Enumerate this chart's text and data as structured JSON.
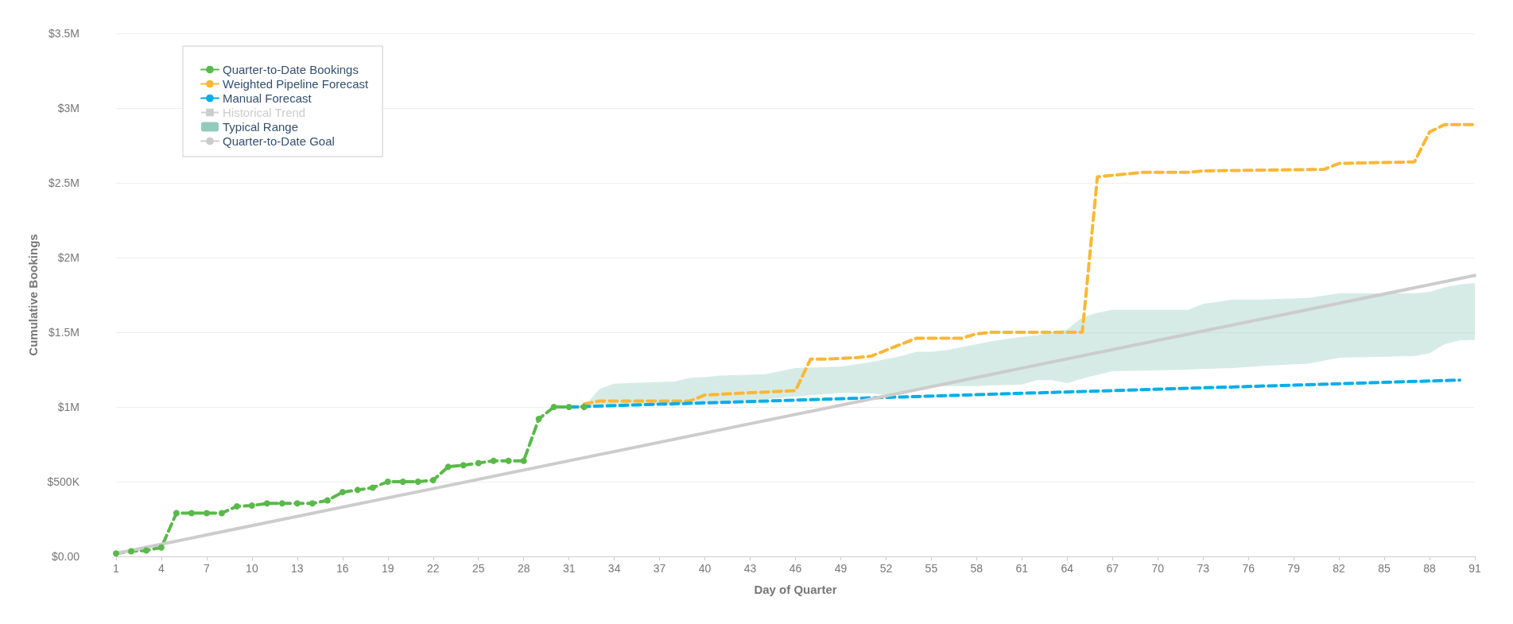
{
  "chart_data": {
    "type": "line",
    "xlabel": "Day of Quarter",
    "ylabel": "Cumulative Bookings",
    "xlim": [
      1,
      91
    ],
    "xticks": [
      1,
      4,
      7,
      10,
      13,
      16,
      19,
      22,
      25,
      28,
      31,
      34,
      37,
      40,
      43,
      46,
      49,
      52,
      55,
      58,
      61,
      64,
      67,
      70,
      73,
      76,
      79,
      82,
      85,
      88,
      91
    ],
    "ylim": [
      0,
      3500000
    ],
    "yticks": [
      {
        "value": 0,
        "label": "$0.00"
      },
      {
        "value": 500000,
        "label": "$500K"
      },
      {
        "value": 1000000,
        "label": "$1M"
      },
      {
        "value": 1500000,
        "label": "$1.5M"
      },
      {
        "value": 2000000,
        "label": "$2M"
      },
      {
        "value": 2500000,
        "label": "$2.5M"
      },
      {
        "value": 3000000,
        "label": "$3M"
      },
      {
        "value": 3500000,
        "label": "$3.5M"
      }
    ],
    "grid": "y",
    "legend": "top left",
    "series": [
      {
        "name": "Quarter-to-Date Bookings",
        "color": "#59b94a",
        "marker": "circle",
        "line_style": "dashed",
        "x": [
          1,
          2,
          3,
          4,
          5,
          6,
          7,
          8,
          9,
          10,
          11,
          12,
          13,
          14,
          15,
          16,
          17,
          18,
          19,
          20,
          21,
          22,
          23,
          24,
          25,
          26,
          27,
          28,
          29,
          30,
          31,
          32
        ],
        "values": [
          20000,
          35000,
          40000,
          60000,
          290000,
          290000,
          290000,
          290000,
          335000,
          340000,
          355000,
          355000,
          355000,
          355000,
          375000,
          430000,
          445000,
          460000,
          500000,
          500000,
          500000,
          510000,
          600000,
          610000,
          625000,
          640000,
          640000,
          640000,
          920000,
          1000000,
          1000000,
          1000000
        ]
      },
      {
        "name": "Weighted Pipeline Forecast",
        "color": "#fbb735",
        "marker": "none",
        "line_style": "dashed",
        "x": [
          32,
          33,
          39,
          40,
          44,
          46,
          47,
          48,
          50,
          51,
          52,
          53,
          54,
          57,
          58,
          59,
          65,
          66,
          67,
          69,
          72,
          73,
          81,
          82,
          87,
          88,
          89,
          91
        ],
        "values": [
          1020000,
          1040000,
          1040000,
          1080000,
          1100000,
          1110000,
          1320000,
          1320000,
          1330000,
          1340000,
          1380000,
          1420000,
          1460000,
          1460000,
          1490000,
          1500000,
          1500000,
          2540000,
          2550000,
          2570000,
          2570000,
          2580000,
          2590000,
          2630000,
          2640000,
          2840000,
          2890000,
          2890000
        ]
      },
      {
        "name": "Manual Forecast",
        "color": "#00aee8",
        "marker": "none",
        "line_style": "dashed",
        "x": [
          31,
          90
        ],
        "values": [
          1000000,
          1180000
        ]
      },
      {
        "name": "Historical Trend",
        "color": "#cccccc",
        "marker": "square",
        "line_style": "dotted"
      },
      {
        "name": "Typical Range",
        "type": "area",
        "color": "#93cbbb",
        "values": [
          null,
          null,
          null,
          null,
          null,
          null,
          null,
          null,
          null,
          null,
          null,
          null,
          null,
          null,
          null,
          null,
          null,
          null,
          null,
          null,
          null,
          null,
          null,
          null,
          null,
          null,
          null,
          null,
          null,
          null,
          null,
          null,
          null,
          null,
          null,
          null,
          null
        ],
        "x": [
          32,
          33,
          34,
          37,
          38,
          39,
          40,
          41,
          44,
          46,
          49,
          51,
          52,
          53,
          54,
          55,
          56,
          58,
          59,
          61,
          62,
          63,
          64,
          65,
          66,
          67,
          72,
          73,
          75,
          77,
          80,
          82,
          87,
          88,
          89,
          90,
          91
        ],
        "lower": [
          1000000,
          1010000,
          1015000,
          1020000,
          1020000,
          1025000,
          1027000,
          1030000,
          1050000,
          1070000,
          1095000,
          1090000,
          1080000,
          1100000,
          1120000,
          1140000,
          1140000,
          1140000,
          1145000,
          1150000,
          1180000,
          1180000,
          1160000,
          1190000,
          1215000,
          1240000,
          1250000,
          1255000,
          1260000,
          1275000,
          1290000,
          1330000,
          1340000,
          1360000,
          1420000,
          1445000,
          1450000
        ],
        "upper": [
          1000000,
          1120000,
          1155000,
          1167000,
          1170000,
          1196000,
          1200000,
          1210000,
          1220000,
          1260000,
          1270000,
          1300000,
          1320000,
          1340000,
          1370000,
          1370000,
          1380000,
          1420000,
          1440000,
          1470000,
          1480000,
          1500000,
          1520000,
          1600000,
          1630000,
          1650000,
          1650000,
          1690000,
          1720000,
          1720000,
          1730000,
          1760000,
          1760000,
          1770000,
          1800000,
          1820000,
          1830000
        ]
      },
      {
        "name": "Quarter-to-Date Goal",
        "color": "#cccccc",
        "marker": "none",
        "line_style": "solid",
        "x": [
          1,
          91
        ],
        "values": [
          20000,
          1880000
        ]
      }
    ]
  }
}
